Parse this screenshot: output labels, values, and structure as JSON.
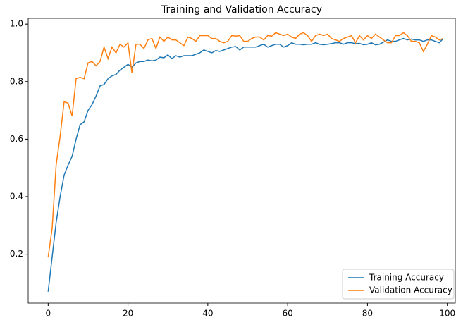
{
  "chart_data": {
    "type": "line",
    "title": "Training and Validation Accuracy",
    "x": [
      0,
      1,
      2,
      3,
      4,
      5,
      6,
      7,
      8,
      9,
      10,
      11,
      12,
      13,
      14,
      15,
      16,
      17,
      18,
      19,
      20,
      21,
      22,
      23,
      24,
      25,
      26,
      27,
      28,
      29,
      30,
      31,
      32,
      33,
      34,
      35,
      36,
      37,
      38,
      39,
      40,
      41,
      42,
      43,
      44,
      45,
      46,
      47,
      48,
      49,
      50,
      51,
      52,
      53,
      54,
      55,
      56,
      57,
      58,
      59,
      60,
      61,
      62,
      63,
      64,
      65,
      66,
      67,
      68,
      69,
      70,
      71,
      72,
      73,
      74,
      75,
      76,
      77,
      78,
      79,
      80,
      81,
      82,
      83,
      84,
      85,
      86,
      87,
      88,
      89,
      90,
      91,
      92,
      93,
      94,
      95,
      96,
      97,
      98,
      99
    ],
    "series": [
      {
        "name": "Training Accuracy",
        "color": "#1f77b4",
        "values": [
          0.07,
          0.19,
          0.31,
          0.4,
          0.475,
          0.51,
          0.54,
          0.6,
          0.65,
          0.66,
          0.7,
          0.72,
          0.75,
          0.785,
          0.79,
          0.81,
          0.82,
          0.825,
          0.84,
          0.85,
          0.86,
          0.85,
          0.865,
          0.87,
          0.87,
          0.875,
          0.872,
          0.875,
          0.885,
          0.883,
          0.893,
          0.88,
          0.89,
          0.885,
          0.89,
          0.89,
          0.89,
          0.895,
          0.9,
          0.91,
          0.905,
          0.9,
          0.908,
          0.905,
          0.91,
          0.915,
          0.92,
          0.922,
          0.91,
          0.92,
          0.92,
          0.92,
          0.92,
          0.925,
          0.93,
          0.92,
          0.925,
          0.93,
          0.93,
          0.92,
          0.925,
          0.935,
          0.93,
          0.93,
          0.928,
          0.93,
          0.93,
          0.935,
          0.93,
          0.928,
          0.93,
          0.932,
          0.935,
          0.935,
          0.93,
          0.935,
          0.935,
          0.932,
          0.933,
          0.928,
          0.93,
          0.935,
          0.928,
          0.93,
          0.937,
          0.945,
          0.94,
          0.94,
          0.945,
          0.95,
          0.945,
          0.948,
          0.945,
          0.945,
          0.94,
          0.945,
          0.945,
          0.94,
          0.935,
          0.95
        ]
      },
      {
        "name": "Validation Accuracy",
        "color": "#ff7f0e",
        "values": [
          0.19,
          0.29,
          0.51,
          0.61,
          0.73,
          0.725,
          0.68,
          0.81,
          0.815,
          0.81,
          0.865,
          0.87,
          0.855,
          0.87,
          0.92,
          0.88,
          0.92,
          0.9,
          0.93,
          0.92,
          0.935,
          0.83,
          0.93,
          0.93,
          0.915,
          0.945,
          0.95,
          0.915,
          0.955,
          0.94,
          0.955,
          0.945,
          0.945,
          0.935,
          0.925,
          0.955,
          0.95,
          0.94,
          0.96,
          0.96,
          0.96,
          0.95,
          0.95,
          0.94,
          0.935,
          0.94,
          0.96,
          0.958,
          0.96,
          0.94,
          0.94,
          0.95,
          0.955,
          0.955,
          0.945,
          0.96,
          0.958,
          0.97,
          0.965,
          0.96,
          0.965,
          0.955,
          0.95,
          0.965,
          0.97,
          0.96,
          0.94,
          0.96,
          0.965,
          0.96,
          0.965,
          0.95,
          0.945,
          0.94,
          0.95,
          0.955,
          0.96,
          0.935,
          0.96,
          0.945,
          0.96,
          0.95,
          0.965,
          0.955,
          0.945,
          0.935,
          0.935,
          0.96,
          0.96,
          0.97,
          0.96,
          0.94,
          0.94,
          0.935,
          0.905,
          0.93,
          0.96,
          0.955,
          0.945,
          0.95
        ]
      }
    ],
    "xlim": [
      -5,
      102
    ],
    "ylim": [
      0.03,
      1.02
    ],
    "xticks": [
      0,
      20,
      40,
      60,
      80,
      100
    ],
    "yticks": [
      0.2,
      0.4,
      0.6,
      0.8,
      {
        "value": 1,
        "label": "1.0"
      }
    ],
    "legend": "lower right"
  }
}
